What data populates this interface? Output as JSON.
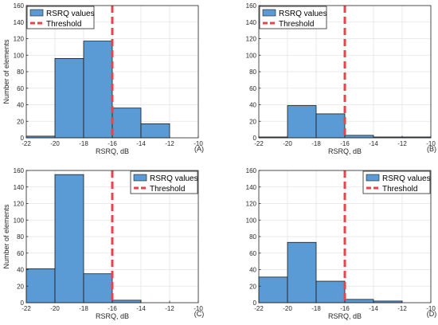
{
  "chart_data": [
    {
      "type": "bar",
      "panel_label": "(A)",
      "bin_edges": [
        -22,
        -20,
        -18,
        -16,
        -14,
        -12
      ],
      "values": [
        2,
        96,
        117,
        36,
        17
      ],
      "threshold": -16,
      "xlabel": "RSRQ, dB",
      "ylabel": "Number of elements",
      "xlim": [
        -22,
        -10
      ],
      "ylim": [
        0,
        160
      ],
      "xticks": [
        -22,
        -20,
        -18,
        -16,
        -14,
        -12,
        -10
      ],
      "yticks": [
        0,
        20,
        40,
        60,
        80,
        100,
        120,
        140,
        160
      ],
      "legend": {
        "position": "top-left",
        "entries": [
          "RSRQ values",
          "Threshold"
        ]
      },
      "grid": true
    },
    {
      "type": "bar",
      "panel_label": "(B)",
      "bin_edges": [
        -22,
        -20,
        -18,
        -16,
        -14,
        -12,
        -10
      ],
      "values": [
        1,
        39,
        29,
        3,
        1,
        1
      ],
      "threshold": -16,
      "xlabel": "RSRQ, dB",
      "ylabel": "",
      "xlim": [
        -22,
        -10
      ],
      "ylim": [
        0,
        160
      ],
      "xticks": [
        -22,
        -20,
        -18,
        -16,
        -14,
        -12,
        -10
      ],
      "yticks": [
        0,
        20,
        40,
        60,
        80,
        100,
        120,
        140,
        160
      ],
      "legend": {
        "position": "top-left",
        "entries": [
          "RSRQ values",
          "Threshold"
        ]
      },
      "grid": true
    },
    {
      "type": "bar",
      "panel_label": "(C)",
      "bin_edges": [
        -22,
        -20,
        -18,
        -16,
        -14
      ],
      "values": [
        41,
        155,
        35,
        3
      ],
      "threshold": -16,
      "xlabel": "RSRQ, dB",
      "ylabel": "Number of elements",
      "xlim": [
        -22,
        -10
      ],
      "ylim": [
        0,
        160
      ],
      "xticks": [
        -22,
        -20,
        -18,
        -16,
        -14,
        -12,
        -10
      ],
      "yticks": [
        0,
        20,
        40,
        60,
        80,
        100,
        120,
        140,
        160
      ],
      "legend": {
        "position": "top-right",
        "entries": [
          "RSRQ values",
          "Threshold"
        ]
      },
      "grid": true
    },
    {
      "type": "bar",
      "panel_label": "(D)",
      "bin_edges": [
        -22,
        -20,
        -18,
        -16,
        -14,
        -12
      ],
      "values": [
        31,
        73,
        26,
        4,
        2
      ],
      "threshold": -16,
      "xlabel": "RSRQ, dB",
      "ylabel": "",
      "xlim": [
        -22,
        -10
      ],
      "ylim": [
        0,
        160
      ],
      "xticks": [
        -22,
        -20,
        -18,
        -16,
        -14,
        -12,
        -10
      ],
      "yticks": [
        0,
        20,
        40,
        60,
        80,
        100,
        120,
        140,
        160
      ],
      "legend": {
        "position": "top-right",
        "entries": [
          "RSRQ values",
          "Threshold"
        ]
      },
      "grid": true
    }
  ],
  "colors": {
    "bar_fill": "#5b9bd5",
    "bar_edge": "#1a1a1a",
    "threshold": "#e8424b",
    "grid": "#e3e3e3",
    "axis": "#262626"
  }
}
